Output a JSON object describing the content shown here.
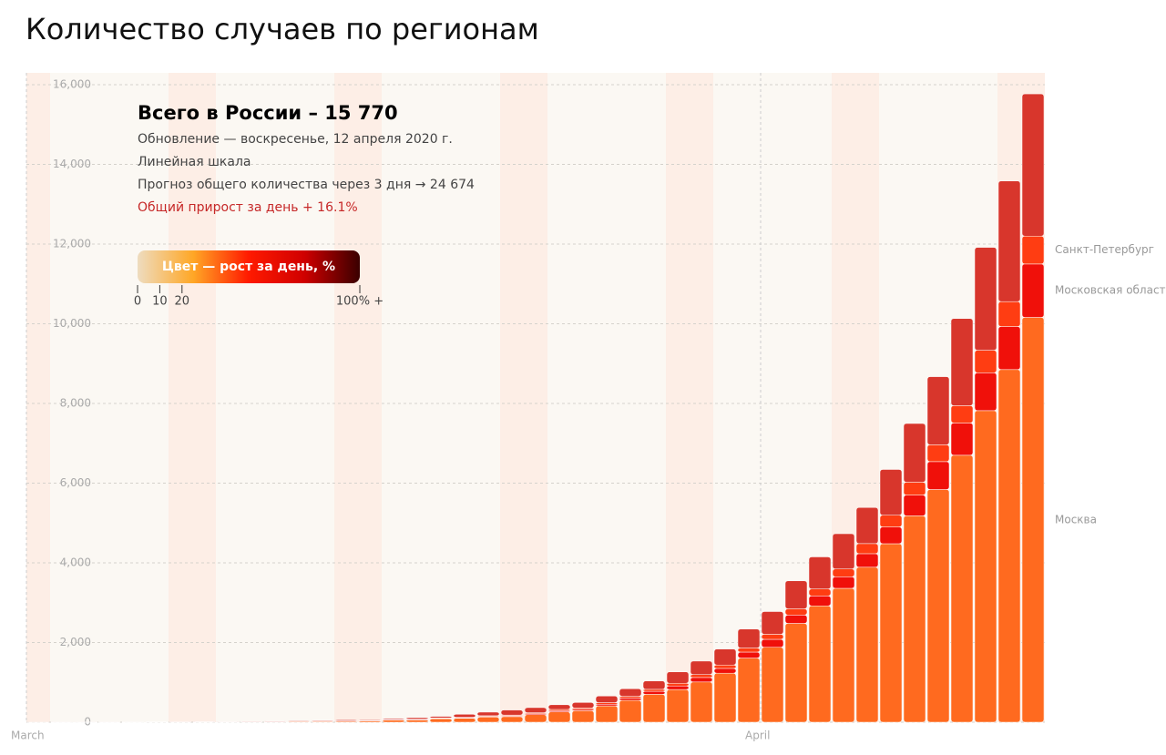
{
  "chart_data": {
    "type": "stacked-bar",
    "title": "Количество случаев по регионам",
    "info": {
      "total": "Всего в России – 15 770",
      "updated": "Обновление — воскресенье, 12 апреля 2020 г.",
      "scale": "Линейная шкала",
      "forecast": "Прогноз общего количества через 3 дня → 24 674",
      "growth": "Общий прирост за день + 16.1%"
    },
    "color_scale": {
      "title": "Цвет — рост за день, %",
      "colors": [
        "#eedcbf",
        "#ffa726",
        "#ff1a00",
        "#d00000",
        "#3a0000"
      ],
      "ticks": [
        0,
        10,
        20,
        {
          "value": 100,
          "label": "100% +"
        }
      ]
    },
    "categories": [
      "March",
      null,
      null,
      null,
      null,
      null,
      null,
      null,
      null,
      null,
      null,
      null,
      null,
      null,
      null,
      null,
      null,
      null,
      null,
      null,
      null,
      null,
      null,
      null,
      null,
      null,
      null,
      null,
      null,
      null,
      null,
      "April",
      null,
      null,
      null,
      null,
      null,
      null,
      null,
      null,
      null,
      null,
      null
    ],
    "series": [
      {
        "name": "Москва",
        "color": "#ff6a1f",
        "values": [
          0,
          1,
          1,
          1,
          1,
          6,
          6,
          6,
          6,
          7,
          10,
          16,
          20,
          25,
          33,
          53,
          56,
          86,
          98,
          130,
          140,
          190,
          260,
          290,
          410,
          550,
          700,
          820,
          1010,
          1230,
          1610,
          1880,
          2480,
          2920,
          3360,
          3890,
          4480,
          5180,
          5840,
          6700,
          7820,
          8850,
          10160
        ]
      },
      {
        "name": "Московская область",
        "color": "#f0100a",
        "values": [
          0,
          0,
          0,
          0,
          0,
          0,
          0,
          0,
          0,
          0,
          1,
          1,
          3,
          4,
          5,
          7,
          9,
          10,
          11,
          15,
          20,
          25,
          30,
          32,
          41,
          56,
          75,
          90,
          112,
          120,
          150,
          200,
          210,
          250,
          290,
          340,
          420,
          520,
          700,
          810,
          950,
          1080,
          1340
        ]
      },
      {
        "name": "Санкт-Петербург",
        "color": "#ff3d12",
        "values": [
          0,
          0,
          0,
          0,
          0,
          1,
          1,
          1,
          1,
          2,
          2,
          3,
          4,
          5,
          6,
          8,
          10,
          12,
          14,
          17,
          19,
          23,
          30,
          34,
          40,
          44,
          50,
          67,
          73,
          85,
          102,
          128,
          157,
          174,
          196,
          253,
          295,
          324,
          423,
          435,
          565,
          626,
          700
        ]
      },
      {
        "color": "#d8362c",
        "values": [
          2,
          2,
          2,
          2,
          3,
          3,
          7,
          10,
          10,
          11,
          15,
          14,
          18,
          25,
          19,
          25,
          39,
          39,
          76,
          91,
          127,
          129,
          118,
          139,
          167,
          190,
          211,
          287,
          339,
          401,
          475,
          569,
          701,
          805,
          885,
          906,
          1148,
          1473,
          1709,
          2186,
          2582,
          3028,
          3570
        ]
      }
    ],
    "ylim": [
      0,
      16000
    ],
    "yticks": [
      0,
      {
        "value": 2000,
        "label": "2,000"
      },
      {
        "value": 4000,
        "label": "4,000"
      },
      {
        "value": 6000,
        "label": "6,000"
      },
      {
        "value": 8000,
        "label": "8,000"
      },
      {
        "value": 10000,
        "label": "10,000"
      },
      {
        "value": 12000,
        "label": "12,000"
      },
      {
        "value": 14000,
        "label": "14,000"
      },
      {
        "value": 16000,
        "label": "16,000"
      }
    ],
    "grid": true
  }
}
